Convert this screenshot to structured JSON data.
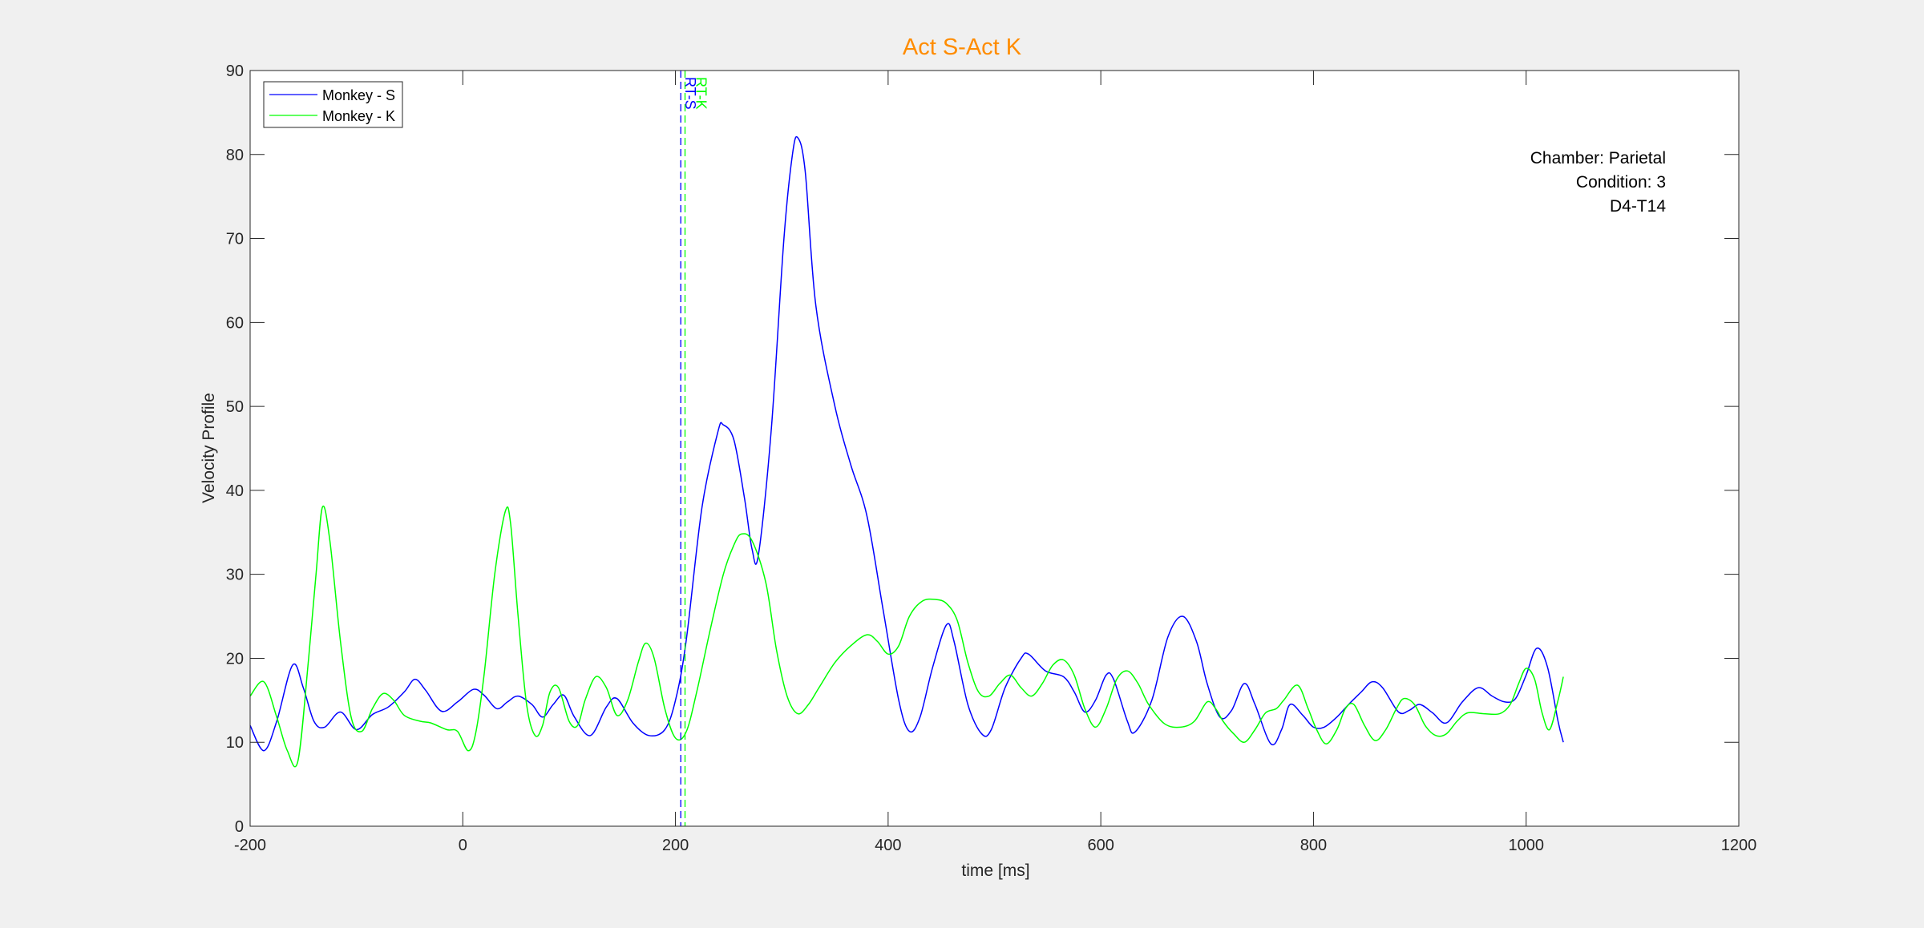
{
  "chart_data": {
    "type": "line",
    "title": "Act S-Act K",
    "xlabel": "time [ms]",
    "ylabel": "Velocity Profile",
    "xlim": [
      -200,
      1200
    ],
    "ylim": [
      0,
      90
    ],
    "xticks": [
      -200,
      0,
      200,
      400,
      600,
      800,
      1000,
      1200
    ],
    "yticks": [
      0,
      10,
      20,
      30,
      40,
      50,
      60,
      70,
      80,
      90
    ],
    "grid": false,
    "legend_location": "top-left",
    "colors": {
      "title": "#ff8c00",
      "series_s": "#0000ff",
      "series_k": "#00ff00",
      "axes_text": "#262626",
      "background": "#f0f0f0"
    },
    "annotation": [
      "Chamber: Parietal",
      "Condition: 3",
      "D4-T14"
    ],
    "vlines": [
      {
        "x": 205,
        "label": "RT-S",
        "color": "#0000ff",
        "style": "dashed"
      },
      {
        "x": 209,
        "label": "RT-K",
        "color": "#00ff00",
        "style": "dashed"
      }
    ],
    "series": [
      {
        "name": "Monkey - S",
        "color": "#0000ff",
        "points": [
          [
            -200,
            12
          ],
          [
            -187,
            9
          ],
          [
            -175,
            12.5
          ],
          [
            -160,
            19.2
          ],
          [
            -150,
            16.5
          ],
          [
            -140,
            12.5
          ],
          [
            -130,
            11.8
          ],
          [
            -115,
            13.6
          ],
          [
            -100,
            11.5
          ],
          [
            -85,
            13.3
          ],
          [
            -70,
            14.2
          ],
          [
            -55,
            16
          ],
          [
            -45,
            17.5
          ],
          [
            -35,
            16.2
          ],
          [
            -20,
            13.7
          ],
          [
            -5,
            14.8
          ],
          [
            10,
            16.3
          ],
          [
            20,
            15.6
          ],
          [
            32,
            14
          ],
          [
            42,
            14.8
          ],
          [
            52,
            15.5
          ],
          [
            65,
            14.5
          ],
          [
            75,
            13
          ],
          [
            85,
            14.5
          ],
          [
            95,
            15.6
          ],
          [
            105,
            13
          ],
          [
            120,
            10.8
          ],
          [
            135,
            14.2
          ],
          [
            145,
            15.2
          ],
          [
            160,
            12.3
          ],
          [
            175,
            10.8
          ],
          [
            190,
            11.5
          ],
          [
            200,
            15
          ],
          [
            210,
            22
          ],
          [
            225,
            38
          ],
          [
            240,
            47
          ],
          [
            245,
            47.8
          ],
          [
            255,
            46
          ],
          [
            265,
            39
          ],
          [
            272,
            33
          ],
          [
            278,
            32.3
          ],
          [
            290,
            47
          ],
          [
            302,
            70
          ],
          [
            310,
            80
          ],
          [
            315,
            82
          ],
          [
            322,
            78
          ],
          [
            332,
            62
          ],
          [
            350,
            50
          ],
          [
            365,
            43
          ],
          [
            380,
            37
          ],
          [
            395,
            26
          ],
          [
            410,
            15
          ],
          [
            420,
            11.3
          ],
          [
            430,
            13
          ],
          [
            442,
            19
          ],
          [
            455,
            24
          ],
          [
            462,
            22
          ],
          [
            475,
            14.5
          ],
          [
            488,
            11
          ],
          [
            497,
            11.5
          ],
          [
            510,
            16.5
          ],
          [
            525,
            20
          ],
          [
            532,
            20.5
          ],
          [
            548,
            18.5
          ],
          [
            565,
            17.8
          ],
          [
            575,
            16
          ],
          [
            585,
            13.6
          ],
          [
            595,
            15
          ],
          [
            605,
            18
          ],
          [
            612,
            17.5
          ],
          [
            625,
            12.5
          ],
          [
            632,
            11.2
          ],
          [
            648,
            15
          ],
          [
            663,
            22.5
          ],
          [
            677,
            25
          ],
          [
            690,
            22
          ],
          [
            700,
            17
          ],
          [
            712,
            13
          ],
          [
            723,
            13.8
          ],
          [
            735,
            17
          ],
          [
            745,
            14.5
          ],
          [
            760,
            9.8
          ],
          [
            770,
            11.5
          ],
          [
            778,
            14.5
          ],
          [
            790,
            13.2
          ],
          [
            800,
            11.8
          ],
          [
            810,
            11.8
          ],
          [
            822,
            13
          ],
          [
            833,
            14.5
          ],
          [
            845,
            16
          ],
          [
            855,
            17.2
          ],
          [
            865,
            16.5
          ],
          [
            880,
            13.6
          ],
          [
            890,
            13.8
          ],
          [
            900,
            14.5
          ],
          [
            912,
            13.5
          ],
          [
            925,
            12.3
          ],
          [
            940,
            14.8
          ],
          [
            955,
            16.5
          ],
          [
            968,
            15.5
          ],
          [
            980,
            14.8
          ],
          [
            990,
            15.2
          ],
          [
            1000,
            18
          ],
          [
            1010,
            21.2
          ],
          [
            1020,
            19
          ],
          [
            1030,
            12.5
          ],
          [
            1035,
            10
          ]
        ]
      },
      {
        "name": "Monkey - K",
        "color": "#00ff00",
        "points": [
          [
            -200,
            15.5
          ],
          [
            -187,
            17.2
          ],
          [
            -175,
            13
          ],
          [
            -165,
            9
          ],
          [
            -155,
            7.8
          ],
          [
            -145,
            20
          ],
          [
            -138,
            30
          ],
          [
            -132,
            38
          ],
          [
            -125,
            34
          ],
          [
            -115,
            22
          ],
          [
            -105,
            13
          ],
          [
            -95,
            11.3
          ],
          [
            -85,
            14
          ],
          [
            -75,
            15.8
          ],
          [
            -65,
            15
          ],
          [
            -55,
            13.2
          ],
          [
            -40,
            12.5
          ],
          [
            -30,
            12.3
          ],
          [
            -15,
            11.5
          ],
          [
            -5,
            11.3
          ],
          [
            5,
            9
          ],
          [
            12,
            11
          ],
          [
            20,
            18
          ],
          [
            30,
            30
          ],
          [
            40,
            37.5
          ],
          [
            45,
            36
          ],
          [
            52,
            25
          ],
          [
            60,
            14.5
          ],
          [
            68,
            10.8
          ],
          [
            75,
            12
          ],
          [
            82,
            16
          ],
          [
            90,
            16.5
          ],
          [
            100,
            12.5
          ],
          [
            108,
            12
          ],
          [
            115,
            15
          ],
          [
            125,
            17.8
          ],
          [
            135,
            16.5
          ],
          [
            145,
            13.2
          ],
          [
            155,
            15
          ],
          [
            165,
            19.5
          ],
          [
            172,
            21.8
          ],
          [
            180,
            20
          ],
          [
            190,
            14
          ],
          [
            200,
            10.5
          ],
          [
            210,
            11.2
          ],
          [
            220,
            16
          ],
          [
            232,
            23
          ],
          [
            245,
            30
          ],
          [
            255,
            33.5
          ],
          [
            262,
            34.8
          ],
          [
            272,
            34
          ],
          [
            285,
            29
          ],
          [
            295,
            21
          ],
          [
            305,
            15.5
          ],
          [
            315,
            13.4
          ],
          [
            325,
            14.5
          ],
          [
            335,
            16.5
          ],
          [
            350,
            19.5
          ],
          [
            365,
            21.5
          ],
          [
            380,
            22.8
          ],
          [
            390,
            22
          ],
          [
            400,
            20.5
          ],
          [
            410,
            21.5
          ],
          [
            420,
            25
          ],
          [
            432,
            26.8
          ],
          [
            445,
            27
          ],
          [
            455,
            26.5
          ],
          [
            465,
            24.5
          ],
          [
            475,
            19.5
          ],
          [
            485,
            16
          ],
          [
            495,
            15.5
          ],
          [
            505,
            17
          ],
          [
            515,
            18
          ],
          [
            525,
            16.5
          ],
          [
            535,
            15.5
          ],
          [
            545,
            17
          ],
          [
            555,
            19.2
          ],
          [
            565,
            19.8
          ],
          [
            575,
            18
          ],
          [
            585,
            14
          ],
          [
            595,
            11.8
          ],
          [
            605,
            14
          ],
          [
            615,
            17.5
          ],
          [
            625,
            18.5
          ],
          [
            635,
            17
          ],
          [
            645,
            14.5
          ],
          [
            660,
            12.2
          ],
          [
            675,
            11.8
          ],
          [
            688,
            12.5
          ],
          [
            700,
            14.8
          ],
          [
            708,
            14
          ],
          [
            715,
            12.5
          ],
          [
            725,
            11
          ],
          [
            735,
            10
          ],
          [
            745,
            11.5
          ],
          [
            755,
            13.5
          ],
          [
            765,
            14
          ],
          [
            772,
            15
          ],
          [
            785,
            16.8
          ],
          [
            795,
            14
          ],
          [
            803,
            11.5
          ],
          [
            812,
            9.8
          ],
          [
            822,
            11.5
          ],
          [
            830,
            14
          ],
          [
            838,
            14.5
          ],
          [
            848,
            12
          ],
          [
            858,
            10.2
          ],
          [
            868,
            11.5
          ],
          [
            878,
            14
          ],
          [
            885,
            15.2
          ],
          [
            895,
            14.5
          ],
          [
            905,
            12
          ],
          [
            915,
            10.8
          ],
          [
            925,
            11
          ],
          [
            935,
            12.5
          ],
          [
            945,
            13.5
          ],
          [
            960,
            13.4
          ],
          [
            975,
            13.4
          ],
          [
            985,
            14.5
          ],
          [
            993,
            17
          ],
          [
            1000,
            18.8
          ],
          [
            1008,
            17.5
          ],
          [
            1015,
            13.5
          ],
          [
            1022,
            11.5
          ],
          [
            1030,
            15
          ],
          [
            1035,
            17.8
          ]
        ]
      }
    ]
  }
}
